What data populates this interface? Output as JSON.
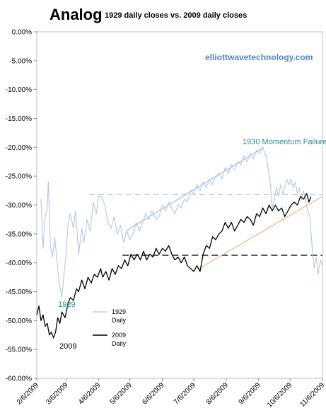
{
  "chart_data": {
    "type": "line",
    "title": "Analog",
    "subtitle": "1929 daily closes vs. 2009 daily closes",
    "watermark": "elliottwavetechnology.com",
    "ylim": [
      -60,
      0
    ],
    "yticks": [
      0,
      -5,
      -10,
      -15,
      -20,
      -25,
      -30,
      -35,
      -40,
      -45,
      -50,
      -55,
      -60
    ],
    "ytick_labels": [
      "0.00%",
      "-5.00%",
      "-10.00%",
      "-15.00%",
      "-20.00%",
      "-25.00%",
      "-30.00%",
      "-35.00%",
      "-40.00%",
      "-45.00%",
      "-50.00%",
      "-55.00%",
      "-60.00%"
    ],
    "x_start": "2009-02-06",
    "x_end": "2009-11-06",
    "xtick_labels": [
      "2/6/2009",
      "3/6/2009",
      "4/6/2009",
      "5/6/2009",
      "6/6/2009",
      "7/6/2009",
      "8/6/2009",
      "9/6/2009",
      "10/6/2009",
      "11/6/2009"
    ],
    "xtick_dates": [
      "2009-02-06",
      "2009-03-06",
      "2009-04-06",
      "2009-05-06",
      "2009-06-06",
      "2009-07-06",
      "2009-08-06",
      "2009-09-06",
      "2009-10-06",
      "2009-11-06"
    ],
    "legend_position": "bottom-left",
    "colors": {
      "s1929": "#b4c7e7",
      "s2009": "#000000",
      "trend1929": "#9fbfe6",
      "trend2009": "#f4b183",
      "h1929": "#9fbfe6",
      "h2009": "#222222",
      "ann1929": "#2e8b8b"
    },
    "series": [
      {
        "name": "1929 Daily",
        "points": [
          [
            "2009-02-10",
            -29.0
          ],
          [
            "2009-02-12",
            -37.5
          ],
          [
            "2009-02-14",
            -32.0
          ],
          [
            "2009-02-16",
            -30.5
          ],
          [
            "2009-02-17",
            -26.0
          ],
          [
            "2009-02-19",
            -37.0
          ],
          [
            "2009-02-21",
            -39.0
          ],
          [
            "2009-02-23",
            -35.5
          ],
          [
            "2009-02-25",
            -39.0
          ],
          [
            "2009-02-27",
            -43.0
          ],
          [
            "2009-03-02",
            -46.0
          ],
          [
            "2009-03-04",
            -42.0
          ],
          [
            "2009-03-06",
            -38.5
          ],
          [
            "2009-03-08",
            -33.0
          ],
          [
            "2009-03-10",
            -31.5
          ],
          [
            "2009-03-13",
            -34.0
          ],
          [
            "2009-03-15",
            -31.0
          ],
          [
            "2009-03-18",
            -38.5
          ],
          [
            "2009-03-21",
            -34.0
          ],
          [
            "2009-03-23",
            -36.5
          ],
          [
            "2009-03-26",
            -32.5
          ],
          [
            "2009-03-29",
            -34.5
          ],
          [
            "2009-04-01",
            -29.5
          ],
          [
            "2009-04-04",
            -31.5
          ],
          [
            "2009-04-06",
            -28.5
          ],
          [
            "2009-04-09",
            -28.5
          ],
          [
            "2009-04-12",
            -30.0
          ],
          [
            "2009-04-15",
            -33.0
          ],
          [
            "2009-04-18",
            -34.0
          ],
          [
            "2009-04-21",
            -32.0
          ],
          [
            "2009-04-24",
            -35.0
          ],
          [
            "2009-04-27",
            -33.5
          ],
          [
            "2009-04-30",
            -36.5
          ],
          [
            "2009-05-03",
            -34.5
          ],
          [
            "2009-05-06",
            -36.0
          ],
          [
            "2009-05-09",
            -35.0
          ],
          [
            "2009-05-12",
            -33.0
          ],
          [
            "2009-05-15",
            -34.5
          ],
          [
            "2009-05-18",
            -33.0
          ],
          [
            "2009-05-21",
            -31.5
          ],
          [
            "2009-05-24",
            -32.5
          ],
          [
            "2009-05-27",
            -31.0
          ],
          [
            "2009-05-31",
            -32.5
          ],
          [
            "2009-06-03",
            -32.0
          ],
          [
            "2009-06-06",
            -30.0
          ],
          [
            "2009-06-09",
            -31.0
          ],
          [
            "2009-06-12",
            -29.5
          ],
          [
            "2009-06-15",
            -30.5
          ],
          [
            "2009-06-18",
            -31.5
          ],
          [
            "2009-06-21",
            -30.0
          ],
          [
            "2009-06-24",
            -30.5
          ],
          [
            "2009-06-27",
            -29.0
          ],
          [
            "2009-06-30",
            -29.5
          ],
          [
            "2009-07-03",
            -27.5
          ],
          [
            "2009-07-06",
            -28.0
          ],
          [
            "2009-07-09",
            -26.5
          ],
          [
            "2009-07-12",
            -27.5
          ],
          [
            "2009-07-15",
            -26.0
          ],
          [
            "2009-07-18",
            -27.0
          ],
          [
            "2009-07-21",
            -25.5
          ],
          [
            "2009-07-24",
            -26.5
          ],
          [
            "2009-07-27",
            -25.0
          ],
          [
            "2009-07-30",
            -24.5
          ],
          [
            "2009-08-02",
            -25.5
          ],
          [
            "2009-08-05",
            -23.5
          ],
          [
            "2009-08-08",
            -24.5
          ],
          [
            "2009-08-11",
            -23.0
          ],
          [
            "2009-08-14",
            -24.0
          ],
          [
            "2009-08-17",
            -22.5
          ],
          [
            "2009-08-20",
            -23.0
          ],
          [
            "2009-08-23",
            -21.5
          ],
          [
            "2009-08-26",
            -22.5
          ],
          [
            "2009-08-29",
            -21.0
          ],
          [
            "2009-09-01",
            -22.0
          ],
          [
            "2009-09-04",
            -20.5
          ],
          [
            "2009-09-07",
            -21.0
          ],
          [
            "2009-09-10",
            -20.0
          ],
          [
            "2009-09-13",
            -21.5
          ],
          [
            "2009-09-15",
            -23.5
          ],
          [
            "2009-09-17",
            -26.0
          ],
          [
            "2009-09-19",
            -30.5
          ],
          [
            "2009-09-21",
            -29.0
          ],
          [
            "2009-09-23",
            -27.0
          ],
          [
            "2009-09-25",
            -28.5
          ],
          [
            "2009-09-27",
            -26.5
          ],
          [
            "2009-09-29",
            -28.0
          ],
          [
            "2009-10-01",
            -27.0
          ],
          [
            "2009-10-03",
            -25.5
          ],
          [
            "2009-10-05",
            -26.5
          ],
          [
            "2009-10-07",
            -25.5
          ],
          [
            "2009-10-09",
            -27.0
          ],
          [
            "2009-10-11",
            -26.0
          ],
          [
            "2009-10-13",
            -28.0
          ],
          [
            "2009-10-15",
            -27.0
          ],
          [
            "2009-10-17",
            -29.0
          ],
          [
            "2009-10-19",
            -27.5
          ],
          [
            "2009-10-21",
            -29.5
          ],
          [
            "2009-10-23",
            -31.0
          ],
          [
            "2009-10-25",
            -32.0
          ],
          [
            "2009-10-27",
            -37.0
          ],
          [
            "2009-10-29",
            -41.0
          ],
          [
            "2009-10-31",
            -39.0
          ],
          [
            "2009-11-02",
            -42.0
          ],
          [
            "2009-11-04",
            -39.5
          ],
          [
            "2009-11-06",
            -40.5
          ]
        ]
      },
      {
        "name": "2009 Daily",
        "points": [
          [
            "2009-02-06",
            -49.0
          ],
          [
            "2009-02-08",
            -47.5
          ],
          [
            "2009-02-10",
            -50.0
          ],
          [
            "2009-02-12",
            -49.0
          ],
          [
            "2009-02-14",
            -51.0
          ],
          [
            "2009-02-16",
            -50.5
          ],
          [
            "2009-02-18",
            -52.5
          ],
          [
            "2009-02-20",
            -52.0
          ],
          [
            "2009-02-22",
            -53.0
          ],
          [
            "2009-02-24",
            -52.0
          ],
          [
            "2009-02-26",
            -49.5
          ],
          [
            "2009-02-28",
            -50.5
          ],
          [
            "2009-03-02",
            -48.5
          ],
          [
            "2009-03-05",
            -49.5
          ],
          [
            "2009-03-08",
            -47.0
          ],
          [
            "2009-03-10",
            -46.0
          ],
          [
            "2009-03-13",
            -46.5
          ],
          [
            "2009-03-16",
            -44.5
          ],
          [
            "2009-03-18",
            -45.0
          ],
          [
            "2009-03-21",
            -43.0
          ],
          [
            "2009-03-24",
            -44.5
          ],
          [
            "2009-03-27",
            -42.5
          ],
          [
            "2009-03-30",
            -43.5
          ],
          [
            "2009-04-02",
            -42.0
          ],
          [
            "2009-04-05",
            -42.5
          ],
          [
            "2009-04-08",
            -41.0
          ],
          [
            "2009-04-10",
            -42.5
          ],
          [
            "2009-04-13",
            -41.5
          ],
          [
            "2009-04-16",
            -43.0
          ],
          [
            "2009-04-19",
            -41.0
          ],
          [
            "2009-04-22",
            -42.0
          ],
          [
            "2009-04-25",
            -40.5
          ],
          [
            "2009-04-28",
            -41.0
          ],
          [
            "2009-05-01",
            -39.5
          ],
          [
            "2009-05-04",
            -40.5
          ],
          [
            "2009-05-07",
            -38.5
          ],
          [
            "2009-05-10",
            -39.5
          ],
          [
            "2009-05-13",
            -38.5
          ],
          [
            "2009-05-16",
            -39.5
          ],
          [
            "2009-05-19",
            -38.0
          ],
          [
            "2009-05-22",
            -39.5
          ],
          [
            "2009-05-25",
            -38.5
          ],
          [
            "2009-05-28",
            -39.0
          ],
          [
            "2009-05-31",
            -37.5
          ],
          [
            "2009-06-03",
            -38.5
          ],
          [
            "2009-06-06",
            -37.5
          ],
          [
            "2009-06-09",
            -38.0
          ],
          [
            "2009-06-12",
            -37.0
          ],
          [
            "2009-06-15",
            -38.5
          ],
          [
            "2009-06-18",
            -39.5
          ],
          [
            "2009-06-21",
            -39.0
          ],
          [
            "2009-06-24",
            -40.0
          ],
          [
            "2009-06-27",
            -39.0
          ],
          [
            "2009-06-30",
            -40.5
          ],
          [
            "2009-07-03",
            -41.0
          ],
          [
            "2009-07-06",
            -41.5
          ],
          [
            "2009-07-09",
            -40.5
          ],
          [
            "2009-07-12",
            -41.5
          ],
          [
            "2009-07-15",
            -38.5
          ],
          [
            "2009-07-18",
            -37.0
          ],
          [
            "2009-07-21",
            -37.5
          ],
          [
            "2009-07-24",
            -35.5
          ],
          [
            "2009-07-27",
            -36.0
          ],
          [
            "2009-07-30",
            -35.0
          ],
          [
            "2009-08-02",
            -34.5
          ],
          [
            "2009-08-05",
            -33.0
          ],
          [
            "2009-08-08",
            -34.0
          ],
          [
            "2009-08-11",
            -33.0
          ],
          [
            "2009-08-14",
            -34.5
          ],
          [
            "2009-08-17",
            -33.5
          ],
          [
            "2009-08-20",
            -32.5
          ],
          [
            "2009-08-23",
            -33.0
          ],
          [
            "2009-08-26",
            -32.0
          ],
          [
            "2009-08-29",
            -32.5
          ],
          [
            "2009-09-01",
            -33.5
          ],
          [
            "2009-09-04",
            -31.5
          ],
          [
            "2009-09-07",
            -32.0
          ],
          [
            "2009-09-10",
            -30.5
          ],
          [
            "2009-09-13",
            -31.5
          ],
          [
            "2009-09-16",
            -30.0
          ],
          [
            "2009-09-19",
            -31.0
          ],
          [
            "2009-09-22",
            -30.0
          ],
          [
            "2009-09-25",
            -31.0
          ],
          [
            "2009-09-28",
            -30.5
          ],
          [
            "2009-10-01",
            -32.0
          ],
          [
            "2009-10-04",
            -31.0
          ],
          [
            "2009-10-07",
            -30.0
          ],
          [
            "2009-10-10",
            -29.5
          ],
          [
            "2009-10-13",
            -30.0
          ],
          [
            "2009-10-16",
            -28.5
          ],
          [
            "2009-10-19",
            -29.0
          ],
          [
            "2009-10-22",
            -28.0
          ],
          [
            "2009-10-24",
            -29.5
          ],
          [
            "2009-10-26",
            -28.5
          ]
        ]
      }
    ],
    "annotations": {
      "momentum": "1930 Momentum Failure",
      "label1929": "1929",
      "label2009": "2009"
    }
  }
}
